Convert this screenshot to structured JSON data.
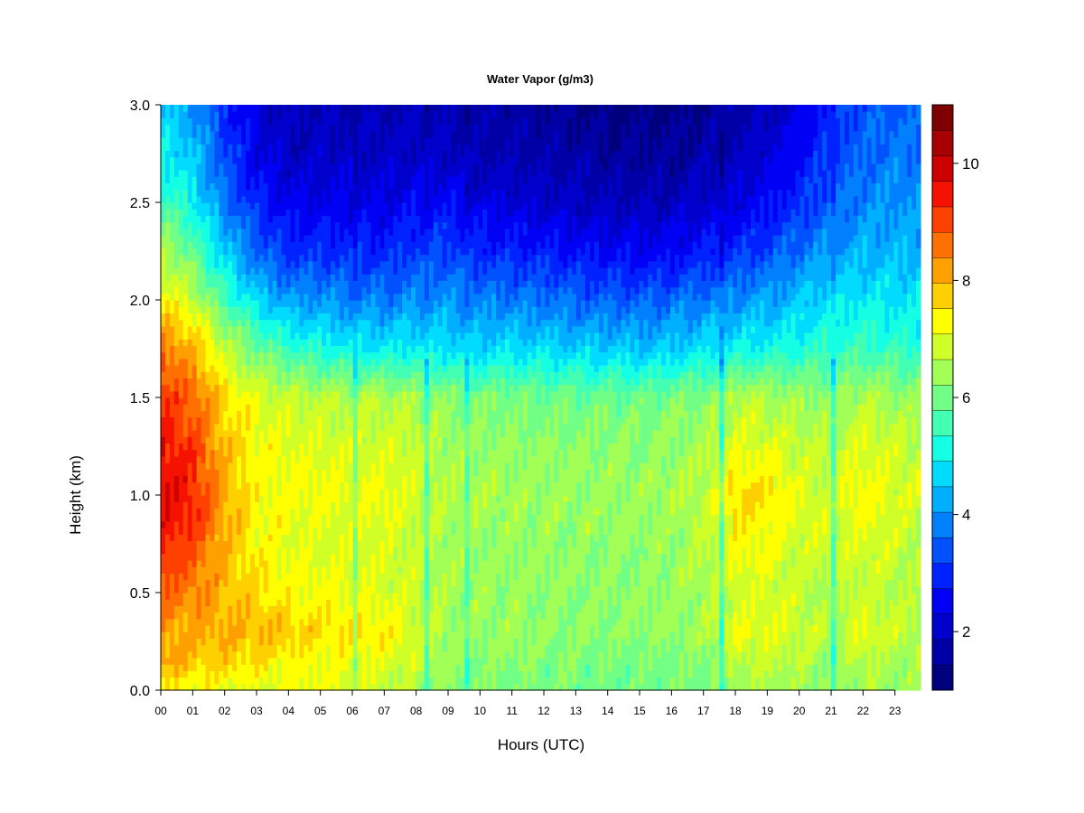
{
  "chart_data": {
    "type": "heatmap",
    "title": "Water Vapor (g/m3)",
    "xlabel": "Hours (UTC)",
    "ylabel": "Height (km)",
    "xlim": [
      0,
      23.8
    ],
    "ylim": [
      0.0,
      3.0
    ],
    "x_tick_labels": [
      "00",
      "01",
      "02",
      "03",
      "04",
      "05",
      "06",
      "07",
      "08",
      "09",
      "10",
      "11",
      "12",
      "13",
      "14",
      "15",
      "16",
      "17",
      "18",
      "19",
      "20",
      "21",
      "22",
      "23"
    ],
    "y_tick_labels": [
      "0.0",
      "0.5",
      "1.0",
      "1.5",
      "2.0",
      "2.5",
      "3.0"
    ],
    "colorbar": {
      "min": 1,
      "max": 11,
      "levels": 20,
      "tick_labels": [
        "2",
        "4",
        "6",
        "8",
        "10"
      ],
      "tick_values": [
        2,
        4,
        6,
        8,
        10
      ],
      "colors": [
        "#00007f",
        "#0000a6",
        "#0000cd",
        "#0000f4",
        "#0022ff",
        "#0051ff",
        "#0080ff",
        "#00afff",
        "#00dbff",
        "#14ffe3",
        "#43ffb4",
        "#72ff85",
        "#a1ff56",
        "#d0ff27",
        "#ffff00",
        "#ffd000",
        "#ff9f00",
        "#ff7000",
        "#ff4100",
        "#f51200",
        "#cd0000",
        "#a60000",
        "#7f0000"
      ]
    },
    "heights_km": [
      0.0,
      0.15,
      0.3,
      0.5,
      0.75,
      1.0,
      1.25,
      1.5,
      1.75,
      2.0,
      2.25,
      2.5,
      2.75,
      3.0
    ],
    "hours": [
      0,
      1,
      2,
      3,
      4,
      5,
      6,
      7,
      8,
      9,
      10,
      11,
      12,
      13,
      14,
      15,
      16,
      17,
      18,
      19,
      20,
      21,
      22,
      23,
      23.8
    ],
    "values": [
      [
        7.3,
        8.2,
        8.2,
        8.7,
        9.4,
        9.8,
        9.6,
        9.2,
        8.6,
        7.4,
        6.6,
        5.6,
        5.0,
        4.6
      ],
      [
        7.2,
        7.8,
        8.0,
        8.5,
        9.0,
        9.4,
        9.1,
        8.7,
        8.0,
        6.8,
        5.8,
        5.0,
        4.5,
        4.1
      ],
      [
        7.1,
        7.7,
        8.0,
        7.9,
        8.0,
        8.1,
        7.9,
        7.6,
        6.8,
        5.6,
        4.6,
        3.8,
        3.3,
        3.0
      ],
      [
        7.0,
        7.5,
        8.0,
        7.6,
        7.3,
        7.3,
        7.3,
        7.0,
        6.0,
        4.7,
        3.6,
        2.9,
        2.4,
        2.2
      ],
      [
        7.1,
        7.3,
        7.8,
        7.3,
        7.1,
        7.2,
        7.1,
        6.8,
        5.5,
        4.1,
        3.1,
        2.4,
        2.0,
        1.8
      ],
      [
        7.1,
        7.2,
        7.6,
        7.2,
        7.0,
        7.2,
        7.0,
        6.7,
        5.2,
        4.0,
        3.0,
        2.4,
        2.0,
        1.8
      ],
      [
        7.0,
        7.1,
        7.5,
        7.1,
        6.9,
        7.1,
        6.9,
        6.6,
        5.0,
        3.9,
        3.0,
        2.4,
        2.0,
        1.8
      ],
      [
        6.8,
        7.0,
        7.4,
        7.0,
        6.9,
        7.2,
        6.9,
        6.6,
        4.9,
        3.8,
        2.9,
        2.4,
        2.0,
        1.8
      ],
      [
        6.6,
        6.8,
        7.0,
        6.8,
        6.7,
        6.9,
        6.8,
        6.5,
        5.0,
        4.0,
        3.2,
        2.6,
        2.1,
        1.9
      ],
      [
        6.2,
        6.3,
        6.5,
        6.4,
        6.5,
        6.6,
        6.5,
        6.2,
        4.8,
        4.0,
        3.3,
        2.6,
        2.0,
        1.8
      ],
      [
        6.2,
        6.2,
        6.4,
        6.3,
        6.4,
        6.5,
        6.4,
        6.1,
        4.7,
        3.8,
        3.0,
        2.3,
        1.8,
        1.6
      ],
      [
        6.1,
        6.2,
        6.4,
        6.3,
        6.3,
        6.4,
        6.3,
        6.1,
        4.8,
        3.8,
        2.9,
        2.2,
        1.8,
        1.6
      ],
      [
        6.1,
        6.1,
        6.3,
        6.3,
        6.3,
        6.4,
        6.3,
        6.0,
        4.7,
        3.7,
        2.8,
        2.1,
        1.7,
        1.5
      ],
      [
        6.1,
        6.1,
        6.3,
        6.2,
        6.3,
        6.4,
        6.3,
        6.0,
        4.6,
        3.6,
        2.7,
        2.0,
        1.6,
        1.4
      ],
      [
        6.0,
        6.1,
        6.3,
        6.2,
        6.3,
        6.4,
        6.3,
        6.0,
        4.6,
        3.5,
        2.6,
        1.9,
        1.5,
        1.3
      ],
      [
        6.0,
        6.1,
        6.3,
        6.2,
        6.3,
        6.4,
        6.2,
        6.0,
        4.5,
        3.5,
        2.5,
        1.9,
        1.5,
        1.3
      ],
      [
        6.0,
        6.1,
        6.4,
        6.3,
        6.4,
        6.5,
        6.3,
        6.1,
        4.6,
        3.6,
        2.6,
        1.9,
        1.5,
        1.3
      ],
      [
        6.1,
        6.2,
        6.5,
        6.5,
        6.6,
        6.7,
        6.5,
        6.2,
        4.8,
        3.8,
        2.8,
        2.1,
        1.7,
        1.5
      ],
      [
        6.4,
        6.7,
        7.1,
        6.9,
        7.3,
        7.7,
        7.0,
        6.7,
        5.0,
        4.0,
        3.0,
        2.3,
        1.9,
        1.7
      ],
      [
        6.5,
        6.8,
        7.1,
        6.9,
        7.2,
        7.6,
        7.0,
        6.6,
        5.1,
        4.2,
        3.3,
        2.6,
        2.2,
        1.9
      ],
      [
        6.4,
        6.6,
        6.9,
        6.7,
        6.9,
        7.0,
        6.8,
        6.4,
        5.2,
        4.5,
        3.7,
        3.0,
        2.6,
        2.3
      ],
      [
        6.3,
        6.4,
        6.7,
        6.5,
        6.8,
        6.9,
        6.7,
        6.3,
        5.4,
        4.8,
        4.1,
        3.5,
        3.2,
        3.0
      ],
      [
        6.5,
        6.7,
        7.1,
        6.8,
        7.0,
        7.4,
        7.0,
        6.6,
        5.5,
        4.9,
        4.3,
        3.9,
        3.6,
        3.4
      ],
      [
        6.4,
        6.5,
        6.8,
        6.6,
        6.8,
        7.0,
        6.8,
        6.4,
        5.4,
        4.8,
        4.4,
        4.0,
        3.7,
        3.5
      ],
      [
        6.3,
        6.4,
        6.7,
        6.5,
        6.7,
        6.9,
        6.7,
        6.3,
        5.4,
        4.8,
        4.4,
        4.0,
        3.7,
        3.5
      ]
    ],
    "moist_spikes": [
      {
        "hour": 8.3,
        "delta": -1.2
      },
      {
        "hour": 9.6,
        "delta": -0.8
      },
      {
        "hour": 17.6,
        "delta": -1.6
      },
      {
        "hour": 21.1,
        "delta": -1.3
      },
      {
        "hour": 6.1,
        "delta": -0.9
      }
    ]
  }
}
